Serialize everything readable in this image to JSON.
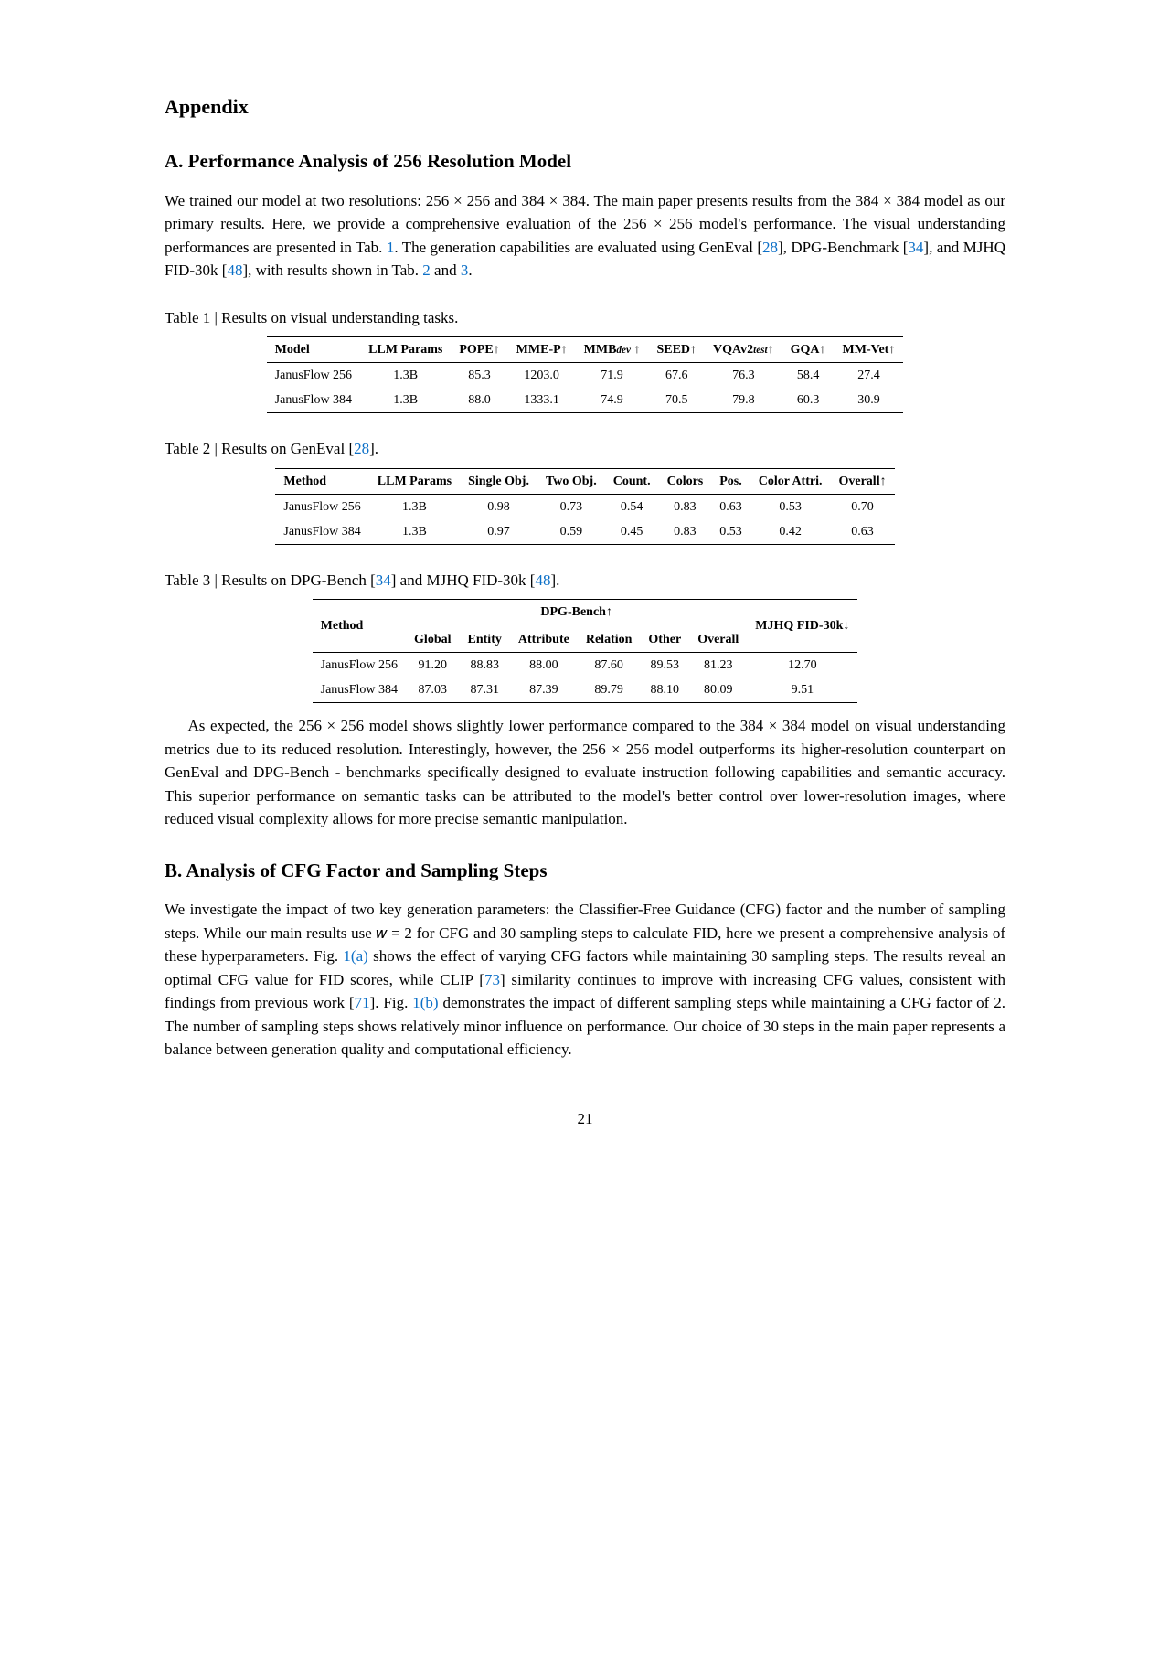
{
  "appendix_title": "Appendix",
  "sectionA": {
    "heading": "A.  Performance Analysis of 256 Resolution Model",
    "p1_a": "We trained our model at two resolutions: 256 × 256 and 384 × 384. The main paper presents results from the 384 × 384 model as our primary results. Here, we provide a comprehensive evaluation of the 256 × 256 model's performance. The visual understanding performances are presented in Tab. ",
    "tab1ref": "1",
    "p1_b": ". The generation capabilities are evaluated using GenEval [",
    "c28": "28",
    "p1_c": "], DPG-Benchmark [",
    "c34": "34",
    "p1_d": "], and MJHQ FID-30k [",
    "c48": "48",
    "p1_e": "], with results shown in Tab. ",
    "tab2ref": "2",
    "p1_f": " and ",
    "tab3ref": "3",
    "p1_g": ".",
    "p2": "As expected, the 256 × 256 model shows slightly lower performance compared to the 384 × 384 model on visual understanding metrics due to its reduced resolution. Interestingly, however, the 256 × 256 model outperforms its higher-resolution counterpart on GenEval and DPG-Bench - benchmarks specifically designed to evaluate instruction following capabilities and semantic accuracy. This superior performance on semantic tasks can be attributed to the model's better control over lower-resolution images, where reduced visual complexity allows for more precise semantic manipulation."
  },
  "table1": {
    "caption": "Table 1 | Results on visual understanding tasks.",
    "headers": {
      "model": "Model",
      "llm": "LLM Params",
      "pope": "POPE↑",
      "mmep": "MME-P↑",
      "mmb_pre": "MMB",
      "mmb_sub": "dev",
      "mmb_post": " ↑",
      "seed": "SEED↑",
      "vqa_pre": "VQAv2",
      "vqa_sub": "test",
      "vqa_post": "↑",
      "gqa": "GQA↑",
      "mmvet": "MM-Vet↑"
    },
    "rows": [
      {
        "model": "JanusFlow 256",
        "llm": "1.3B",
        "pope": "85.3",
        "mmep": "1203.0",
        "mmb": "71.9",
        "seed": "67.6",
        "vqa": "76.3",
        "gqa": "58.4",
        "mmvet": "27.4"
      },
      {
        "model": "JanusFlow 384",
        "llm": "1.3B",
        "pope": "88.0",
        "mmep": "1333.1",
        "mmb": "74.9",
        "seed": "70.5",
        "vqa": "79.8",
        "gqa": "60.3",
        "mmvet": "30.9"
      }
    ]
  },
  "table2": {
    "caption_a": "Table 2 | Results on GenEval [",
    "caption_cite": "28",
    "caption_b": "].",
    "headers": {
      "method": "Method",
      "llm": "LLM Params",
      "single": "Single Obj.",
      "two": "Two Obj.",
      "count": "Count.",
      "colors": "Colors",
      "pos": "Pos.",
      "cattr": "Color Attri.",
      "overall": "Overall↑"
    },
    "rows": [
      {
        "method": "JanusFlow 256",
        "llm": "1.3B",
        "single": "0.98",
        "two": "0.73",
        "count": "0.54",
        "colors": "0.83",
        "pos": "0.63",
        "cattr": "0.53",
        "overall": "0.70"
      },
      {
        "method": "JanusFlow 384",
        "llm": "1.3B",
        "single": "0.97",
        "two": "0.59",
        "count": "0.45",
        "colors": "0.83",
        "pos": "0.53",
        "cattr": "0.42",
        "overall": "0.63"
      }
    ]
  },
  "table3": {
    "caption_a": "Table 3 | Results on DPG-Bench [",
    "cite34": "34",
    "caption_b": "] and MJHQ FID-30k [",
    "cite48": "48",
    "caption_c": "].",
    "group_dpg": "DPG-Bench↑",
    "group_fid": "MJHQ FID-30k↓",
    "headers": {
      "method": "Method",
      "global": "Global",
      "entity": "Entity",
      "attribute": "Attribute",
      "relation": "Relation",
      "other": "Other",
      "overall": "Overall"
    },
    "rows": [
      {
        "method": "JanusFlow 256",
        "global": "91.20",
        "entity": "88.83",
        "attribute": "88.00",
        "relation": "87.60",
        "other": "89.53",
        "overall": "81.23",
        "fid": "12.70"
      },
      {
        "method": "JanusFlow 384",
        "global": "87.03",
        "entity": "87.31",
        "attribute": "87.39",
        "relation": "89.79",
        "other": "88.10",
        "overall": "80.09",
        "fid": "9.51"
      }
    ]
  },
  "sectionB": {
    "heading": "B.  Analysis of CFG Factor and Sampling Steps",
    "p_a": "We investigate the impact of two key generation parameters: the Classifier-Free Guidance (CFG) factor and the number of sampling steps. While our main results use 𝑤 = 2 for CFG and 30 sampling steps to calculate FID, here we present a comprehensive analysis of these hyperparameters. Fig. ",
    "fig1a": "1(a)",
    "p_b": " shows the effect of varying CFG factors while maintaining 30 sampling steps. The results reveal an optimal CFG value for FID scores, while CLIP [",
    "c73": "73",
    "p_c": "] similarity continues to improve with increasing CFG values, consistent with findings from previous work [",
    "c71": "71",
    "p_d": "]. Fig. ",
    "fig1b": "1(b)",
    "p_e": " demonstrates the impact of different sampling steps while maintaining a CFG factor of 2. The number of sampling steps shows relatively minor influence on performance. Our choice of 30 steps in the main paper represents a balance between generation quality and computational efficiency."
  },
  "pagenum": "21"
}
